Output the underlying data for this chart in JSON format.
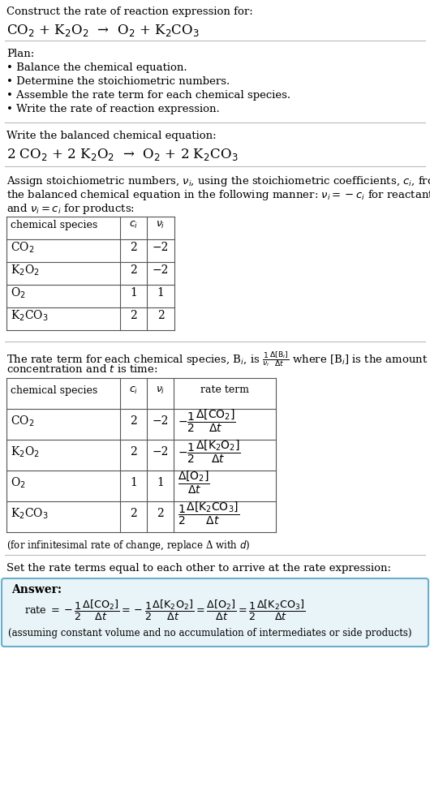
{
  "bg_color": "#ffffff",
  "text_color": "#000000",
  "section1_title": "Construct the rate of reaction expression for:",
  "section1_reaction": "CO$_2$ + K$_2$O$_2$  →  O$_2$ + K$_2$CO$_3$",
  "section2_title": "Plan:",
  "section2_bullets": [
    "• Balance the chemical equation.",
    "• Determine the stoichiometric numbers.",
    "• Assemble the rate term for each chemical species.",
    "• Write the rate of reaction expression."
  ],
  "section3_title": "Write the balanced chemical equation:",
  "section3_equation": "2 CO$_2$ + 2 K$_2$O$_2$  →  O$_2$ + 2 K$_2$CO$_3$",
  "table1_headers": [
    "chemical species",
    "$c_i$",
    "$\\nu_i$"
  ],
  "table1_rows": [
    [
      "CO$_2$",
      "2",
      "−2"
    ],
    [
      "K$_2$O$_2$",
      "2",
      "−2"
    ],
    [
      "O$_2$",
      "1",
      "1"
    ],
    [
      "K$_2$CO$_3$",
      "2",
      "2"
    ]
  ],
  "table2_headers": [
    "chemical species",
    "$c_i$",
    "$\\nu_i$",
    "rate term"
  ],
  "table2_rows": [
    [
      "CO$_2$",
      "2",
      "−2"
    ],
    [
      "K$_2$O$_2$",
      "2",
      "−2"
    ],
    [
      "O$_2$",
      "1",
      "1"
    ],
    [
      "K$_2$CO$_3$",
      "2",
      "2"
    ]
  ],
  "rate_terms": [
    "$-\\dfrac{1}{2}\\dfrac{\\Delta[\\mathrm{CO_2}]}{\\Delta t}$",
    "$-\\dfrac{1}{2}\\dfrac{\\Delta[\\mathrm{K_2O_2}]}{\\Delta t}$",
    "$\\dfrac{\\Delta[\\mathrm{O_2}]}{\\Delta t}$",
    "$\\dfrac{1}{2}\\dfrac{\\Delta[\\mathrm{K_2CO_3}]}{\\Delta t}$"
  ],
  "infinitesimal_note": "(for infinitesimal rate of change, replace Δ with $d$)",
  "section6_title": "Set the rate terms equal to each other to arrive at the rate expression:",
  "answer_label": "Answer:",
  "answer_box_color": "#e8f4f8",
  "answer_box_border": "#6aaecb",
  "answer_note": "(assuming constant volume and no accumulation of intermediates or side products)",
  "section4_line1": "Assign stoichiometric numbers, $\\nu_i$, using the stoichiometric coefficients, $c_i$, from",
  "section4_line2": "the balanced chemical equation in the following manner: $\\nu_i = -c_i$ for reactants",
  "section4_line3": "and $\\nu_i = c_i$ for products:",
  "section5_line1": "The rate term for each chemical species, B$_i$, is $\\frac{1}{\\nu_i}\\frac{\\Delta[\\mathrm{B}_i]}{\\Delta t}$ where [B$_i$] is the amount",
  "section5_line2": "concentration and $t$ is time:"
}
